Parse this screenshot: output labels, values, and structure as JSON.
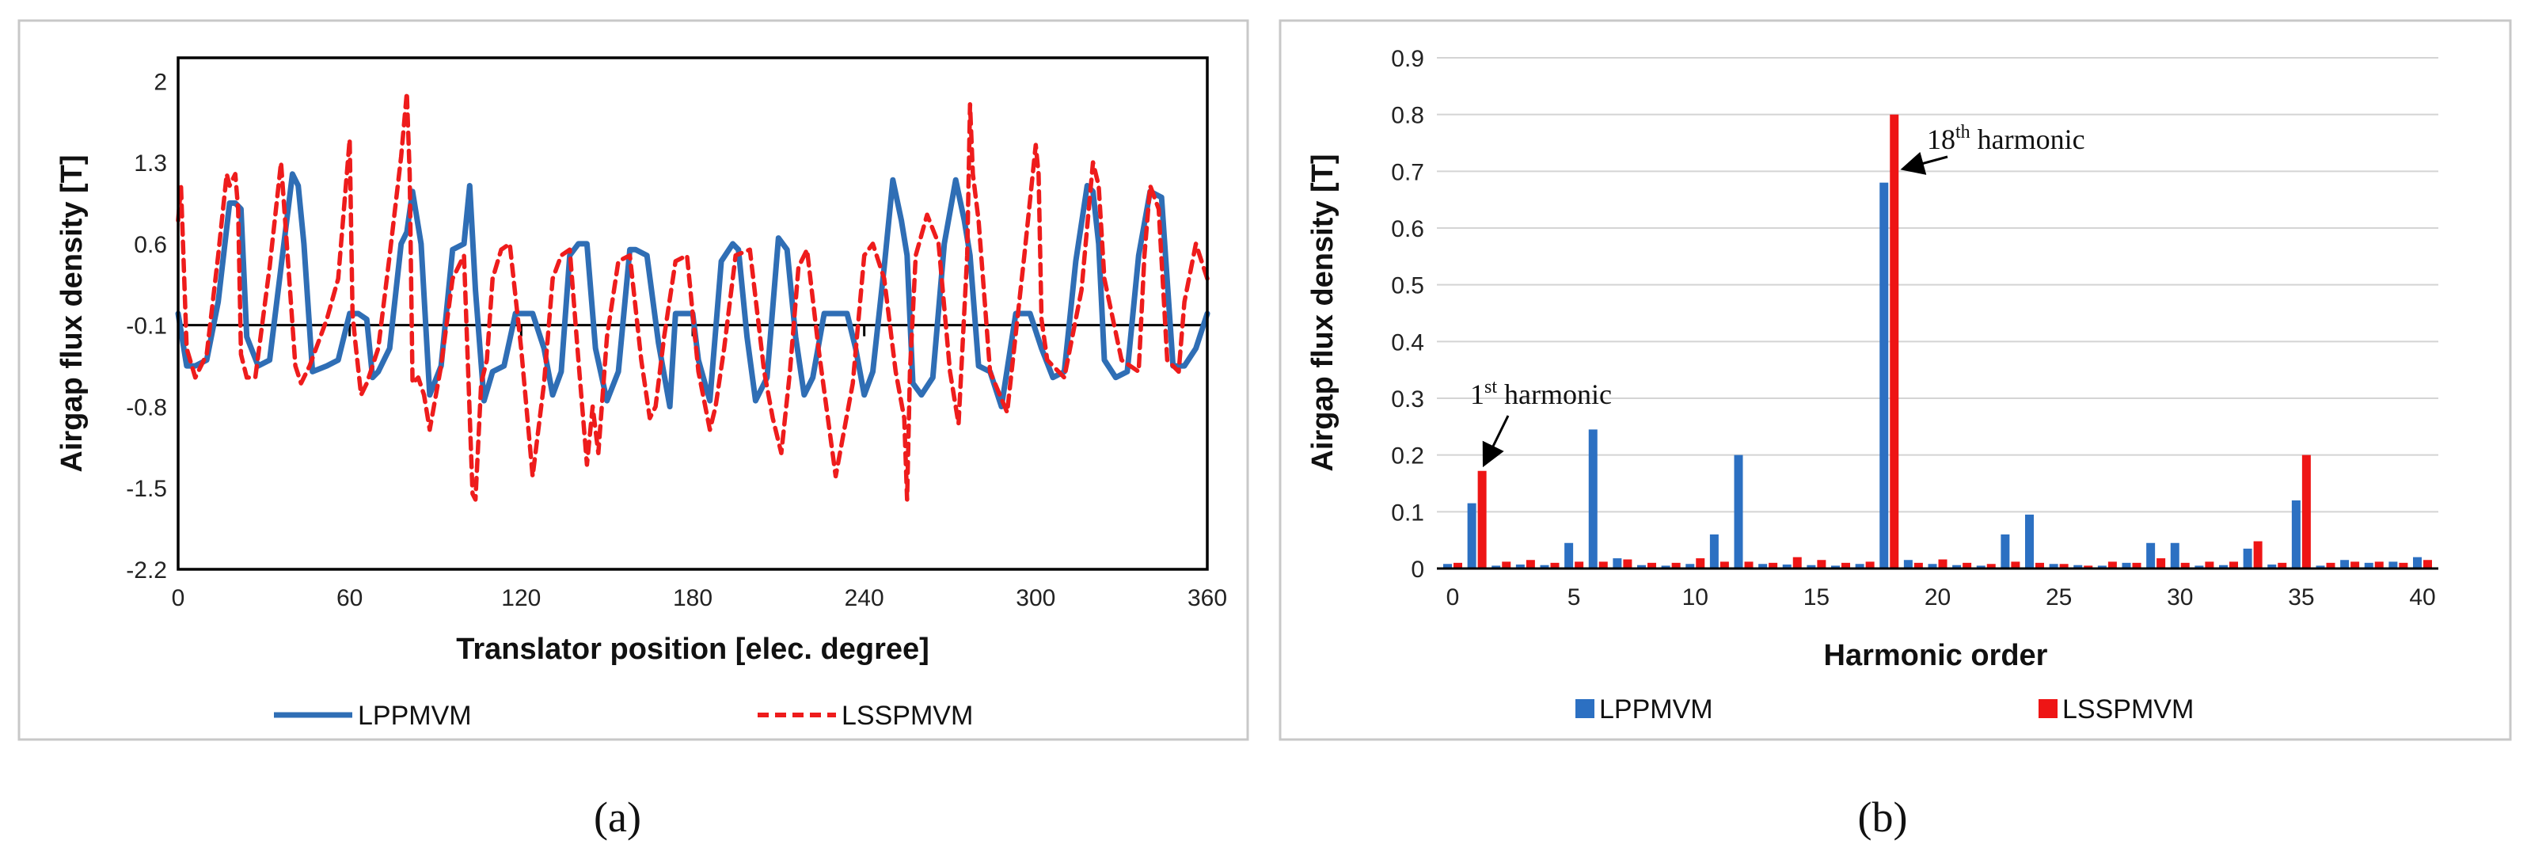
{
  "chart_data": [
    {
      "type": "line",
      "panel_label": "(a)",
      "xlabel": "Translator position [elec. degree]",
      "ylabel": "Airgap flux density [T]",
      "xlim": [
        0,
        360
      ],
      "ylim": [
        -2.2,
        2.2
      ],
      "xticks": [
        "0",
        "60",
        "120",
        "180",
        "240",
        "300",
        "360"
      ],
      "yticks": [
        "2",
        "1.3",
        "0.6",
        "-0.1",
        "-0.8",
        "-1.5",
        "-2.2"
      ],
      "legend": [
        "LPPMVM",
        "LSSPMVM"
      ],
      "series": [
        {
          "name": "LPPMVM",
          "color": "#2f6eb5",
          "style": "solid",
          "x": [
            0,
            3,
            6,
            10,
            14,
            18,
            20,
            22,
            24,
            28,
            32,
            36,
            40,
            42,
            44,
            47,
            52,
            56,
            60,
            63,
            66,
            68,
            70,
            74,
            78,
            80,
            82,
            85,
            88,
            92,
            96,
            100,
            102,
            104,
            107,
            110,
            114,
            118,
            122,
            124,
            128,
            131,
            134,
            137,
            140,
            143,
            146,
            150,
            154,
            158,
            160,
            164,
            168,
            172,
            174,
            176,
            180,
            182,
            186,
            190,
            194,
            196,
            199,
            202,
            206,
            210,
            213,
            216,
            219,
            222,
            226,
            230,
            234,
            237,
            240,
            243,
            247,
            250,
            253,
            255,
            257,
            260,
            264,
            268,
            272,
            275,
            277,
            280,
            284,
            288,
            293,
            296,
            298,
            302,
            306,
            310,
            314,
            318,
            320,
            322,
            324,
            328,
            332,
            336,
            340,
            344,
            348,
            352,
            356,
            360
          ],
          "y": [
            0,
            -0.45,
            -0.45,
            -0.4,
            0.1,
            0.95,
            0.95,
            0.9,
            -0.2,
            -0.45,
            -0.4,
            0.4,
            1.2,
            1.1,
            0.6,
            -0.5,
            -0.45,
            -0.4,
            0,
            0,
            -0.05,
            -0.55,
            -0.5,
            -0.3,
            0.6,
            0.7,
            1.05,
            0.6,
            -0.7,
            -0.45,
            0.55,
            0.6,
            1.1,
            0.2,
            -0.75,
            -0.5,
            -0.45,
            0,
            0,
            0,
            -0.3,
            -0.7,
            -0.5,
            0.5,
            0.6,
            0.6,
            -0.3,
            -0.75,
            -0.5,
            0.55,
            0.55,
            0.5,
            -0.25,
            -0.8,
            0,
            0,
            0,
            -0.4,
            -0.75,
            0.45,
            0.6,
            0.55,
            -0.2,
            -0.75,
            -0.55,
            0.65,
            0.55,
            -0.2,
            -0.7,
            -0.55,
            0,
            0,
            0,
            -0.3,
            -0.7,
            -0.5,
            0.4,
            1.15,
            0.8,
            0.5,
            -0.6,
            -0.7,
            -0.55,
            0.6,
            1.15,
            0.8,
            0.5,
            -0.45,
            -0.5,
            -0.8,
            0,
            0,
            0,
            -0.3,
            -0.55,
            -0.5,
            0.45,
            1.1,
            1.05,
            0.6,
            -0.4,
            -0.55,
            -0.5,
            0.5,
            1.05,
            1.0,
            -0.45,
            -0.45,
            -0.3,
            0
          ]
        },
        {
          "name": "LSSPMVM",
          "color": "#ee1c1c",
          "style": "dashed",
          "x": [
            0,
            1,
            3,
            6,
            10,
            14,
            17,
            18,
            20,
            21,
            22,
            24,
            27,
            32,
            36,
            41,
            43,
            46,
            52,
            56,
            60,
            61,
            62,
            64,
            66,
            70,
            74,
            78,
            80,
            81,
            82,
            84,
            86,
            88,
            92,
            96,
            100,
            103,
            104,
            106,
            108,
            110,
            113,
            116,
            120,
            124,
            126,
            128,
            131,
            134,
            137,
            140,
            143,
            145,
            147,
            150,
            154,
            158,
            162,
            165,
            167,
            170,
            174,
            178,
            182,
            186,
            188,
            191,
            195,
            200,
            205,
            208,
            211,
            214,
            217,
            220,
            224,
            230,
            236,
            240,
            243,
            247,
            251,
            254,
            255,
            256,
            258,
            262,
            266,
            270,
            273,
            276,
            277,
            278,
            280,
            284,
            290,
            296,
            300,
            301,
            302,
            304,
            310,
            316,
            320,
            322,
            324,
            330,
            336,
            338,
            340,
            343,
            346,
            350,
            352,
            356,
            360
          ],
          "y": [
            0.8,
            1.1,
            -0.3,
            -0.55,
            -0.35,
            0.5,
            1.2,
            1.1,
            1.2,
            0.9,
            -0.35,
            -0.55,
            -0.55,
            0.4,
            1.3,
            -0.45,
            -0.6,
            -0.45,
            -0.05,
            0.3,
            1.5,
            0,
            -0.25,
            -0.7,
            -0.6,
            -0.3,
            0.5,
            1.35,
            1.9,
            1.2,
            -0.6,
            -0.55,
            -0.7,
            -1.0,
            -0.45,
            0.3,
            0.5,
            -1.55,
            -1.6,
            -0.6,
            -0.4,
            0.3,
            0.55,
            0.6,
            -0.3,
            -1.4,
            -1.0,
            -0.6,
            0.3,
            0.5,
            0.55,
            -0.4,
            -1.3,
            -0.8,
            -1.2,
            -0.2,
            0.45,
            0.5,
            -0.4,
            -0.9,
            -0.8,
            -0.2,
            0.45,
            0.5,
            -0.5,
            -1.0,
            -0.8,
            -0.3,
            0.5,
            0.55,
            -0.5,
            -0.9,
            -1.2,
            -0.5,
            0.4,
            0.55,
            -0.3,
            -1.4,
            -0.6,
            0.5,
            0.6,
            0.3,
            -0.5,
            -0.9,
            -1.6,
            -0.5,
            0.5,
            0.85,
            0.6,
            -0.5,
            -0.95,
            0.5,
            1.8,
            1.2,
            0.8,
            -0.5,
            -0.85,
            0.5,
            1.45,
            1.2,
            -0.05,
            -0.4,
            -0.55,
            0.2,
            1.3,
            1.1,
            0.3,
            -0.4,
            -0.5,
            0.5,
            1.1,
            0.9,
            -0.4,
            -0.5,
            0.1,
            0.6,
            0.3
          ]
        }
      ]
    },
    {
      "type": "bar",
      "panel_label": "(b)",
      "xlabel": "Harmonic order",
      "ylabel": "Airgap flux density [T]",
      "ylim": [
        0,
        0.9
      ],
      "yticks": [
        "0",
        "0.1",
        "0.2",
        "0.3",
        "0.4",
        "0.5",
        "0.6",
        "0.7",
        "0.8",
        "0.9"
      ],
      "xticks": [
        "0",
        "5",
        "10",
        "15",
        "20",
        "25",
        "30",
        "35",
        "40"
      ],
      "categories": [
        0,
        1,
        2,
        3,
        4,
        5,
        6,
        7,
        8,
        9,
        10,
        11,
        12,
        13,
        14,
        15,
        16,
        17,
        18,
        19,
        20,
        21,
        22,
        23,
        24,
        25,
        26,
        27,
        28,
        29,
        30,
        31,
        32,
        33,
        34,
        35,
        36,
        37,
        38,
        39,
        40
      ],
      "legend": [
        "LPPMVM",
        "LSSPMVM"
      ],
      "series": [
        {
          "name": "LPPMVM",
          "color": "#2c70c2",
          "values": [
            0.008,
            0.115,
            0.005,
            0.007,
            0.006,
            0.045,
            0.245,
            0.018,
            0.006,
            0.005,
            0.008,
            0.06,
            0.2,
            0.008,
            0.007,
            0.006,
            0.005,
            0.008,
            0.68,
            0.015,
            0.008,
            0.006,
            0.005,
            0.06,
            0.095,
            0.008,
            0.006,
            0.005,
            0.01,
            0.045,
            0.045,
            0.005,
            0.006,
            0.035,
            0.007,
            0.12,
            0.005,
            0.015,
            0.01,
            0.012,
            0.02
          ]
        },
        {
          "name": "LSSPMVM",
          "color": "#ee1515",
          "values": [
            0.01,
            0.172,
            0.012,
            0.015,
            0.01,
            0.012,
            0.012,
            0.016,
            0.01,
            0.01,
            0.018,
            0.012,
            0.012,
            0.01,
            0.02,
            0.015,
            0.01,
            0.012,
            0.8,
            0.01,
            0.016,
            0.01,
            0.008,
            0.012,
            0.01,
            0.008,
            0.005,
            0.012,
            0.01,
            0.018,
            0.01,
            0.012,
            0.012,
            0.048,
            0.01,
            0.2,
            0.01,
            0.012,
            0.012,
            0.01,
            0.015
          ]
        }
      ],
      "annotations": [
        {
          "label_main": "1",
          "label_sup": "st",
          "label_rest": " harmonic",
          "harmonic": 1
        },
        {
          "label_main": "18",
          "label_sup": "th",
          "label_rest": " harmonic",
          "harmonic": 18
        }
      ]
    }
  ]
}
